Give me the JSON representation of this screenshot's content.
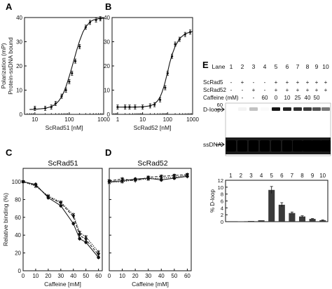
{
  "panels": {
    "A": {
      "letter": "A"
    },
    "B": {
      "letter": "B"
    },
    "C": {
      "letter": "C",
      "title": "ScRad51"
    },
    "D": {
      "letter": "D",
      "title": "ScRad52"
    },
    "E": {
      "letter": "E"
    }
  },
  "colors": {
    "ink": "#111111",
    "bar": "#3a3a3a",
    "gel_bg": "#ffffff",
    "gel_band": "#0a0a0a"
  },
  "gel": {
    "lane_header": "Lane",
    "lanes": [
      "1",
      "2",
      "3",
      "4",
      "5",
      "6",
      "7",
      "8",
      "9",
      "10"
    ],
    "row_scrad5_label": "ScRad5",
    "row_scrad5": [
      "-",
      "+",
      "-",
      "-",
      "+",
      "+",
      "+",
      "+",
      "+",
      "+"
    ],
    "row_scrad52_label": "ScRad52",
    "row_scrad52": [
      "-",
      "-",
      "+",
      "-",
      "+",
      "+",
      "+",
      "+",
      "+",
      "+"
    ],
    "row_caffeine_label": "Caffeine (mM)",
    "row_caffeine": [
      "-",
      "-",
      "-",
      "60",
      "0",
      "10",
      "25",
      "40",
      "50",
      ""
    ],
    "marker_60": "60",
    "dloop_label": "D-loop",
    "ssdna_label": "ssDNA",
    "dloop_intensity": [
      0,
      0.05,
      0.25,
      0.02,
      0.95,
      0.9,
      0.85,
      0.8,
      0.7,
      0.55
    ],
    "ssdna_intensity": [
      1,
      1,
      1,
      1,
      1,
      1,
      1,
      1,
      1,
      1
    ]
  },
  "chart_data": [
    {
      "panel": "A",
      "type": "line",
      "xlabel": "ScRad51 [nM]",
      "ylabel": "Polarization (mP)\nProtein-ssDNA bound",
      "xscale": "log",
      "xlim": [
        5,
        1000
      ],
      "ylim": [
        0,
        40
      ],
      "xticks": [
        10,
        100,
        1000
      ],
      "xtick_labels": [
        "10",
        "100",
        "1000"
      ],
      "yticks": [
        0,
        10,
        20,
        30,
        40
      ],
      "ytick_labels": [
        "0",
        "10",
        "20",
        "30",
        "40"
      ],
      "x": [
        10,
        20,
        30,
        40,
        60,
        80,
        100,
        120,
        150,
        200,
        300,
        400,
        600,
        800
      ],
      "y": [
        2.5,
        2.5,
        3,
        4.5,
        7.5,
        10,
        13.5,
        17,
        22,
        28,
        36,
        38,
        39,
        39.5
      ],
      "fit_x": [
        7,
        10,
        15,
        20,
        30,
        40,
        50,
        60,
        70,
        80,
        90,
        100,
        120,
        140,
        160,
        200,
        250,
        300,
        400,
        500,
        700,
        1000
      ],
      "fit_y": [
        2,
        2.1,
        2.3,
        2.5,
        3.2,
        4.2,
        5.6,
        7.3,
        9.3,
        11.4,
        13.6,
        15.7,
        19.6,
        23,
        25.9,
        30.4,
        34,
        36.1,
        38.2,
        39,
        39.5,
        39.7
      ]
    },
    {
      "panel": "B",
      "type": "line",
      "xlabel": "ScRad52 [nM]",
      "xscale": "log",
      "xlim": [
        0.6,
        1000
      ],
      "ylim": [
        0,
        40
      ],
      "xticks": [
        1,
        10,
        100,
        1000
      ],
      "xtick_labels": [
        "1",
        "10",
        "100",
        "1000"
      ],
      "yticks": [
        0,
        10,
        20,
        30,
        40
      ],
      "ytick_labels": [
        "0",
        "10",
        "20",
        "30",
        "40"
      ],
      "x": [
        1,
        2,
        3,
        5,
        10,
        20,
        30,
        50,
        80,
        100,
        150,
        200,
        300,
        500,
        800
      ],
      "y": [
        3,
        3,
        3,
        3,
        3,
        3.5,
        4,
        6,
        11,
        17,
        24,
        29,
        31,
        33,
        34
      ],
      "fit_x": [
        1,
        2,
        5,
        10,
        20,
        30,
        40,
        50,
        60,
        70,
        80,
        100,
        120,
        150,
        200,
        300,
        500,
        1000
      ],
      "fit_y": [
        3,
        3,
        3,
        3.1,
        3.5,
        4.3,
        5.6,
        7.2,
        9.2,
        11.3,
        13.4,
        17.5,
        21,
        24.6,
        28.1,
        31.3,
        33.3,
        34.3
      ]
    },
    {
      "panel": "C",
      "type": "line",
      "title": "ScRad51",
      "xlabel": "Caffeine [mM]",
      "ylabel": "Relative binding (%)",
      "xlim": [
        0,
        63
      ],
      "ylim": [
        0,
        115
      ],
      "xticks": [
        0,
        10,
        20,
        30,
        40,
        50,
        60
      ],
      "xtick_labels": [
        "0",
        "10",
        "20",
        "30",
        "40",
        "50",
        "60"
      ],
      "yticks": [
        0,
        20,
        40,
        60,
        80,
        100
      ],
      "ytick_labels": [
        "0",
        "20",
        "40",
        "60",
        "80",
        "100"
      ],
      "series": [
        {
          "marker": "circle",
          "x": [
            0,
            10,
            20,
            30,
            40,
            45,
            50,
            60
          ],
          "y": [
            100,
            97,
            82,
            73,
            53,
            36,
            32,
            15
          ]
        },
        {
          "marker": "triangle",
          "x": [
            0,
            10,
            20,
            30,
            40,
            45,
            50,
            60
          ],
          "y": [
            100,
            96,
            83,
            76,
            61,
            40,
            35,
            18
          ]
        },
        {
          "marker": "x",
          "x": [
            0,
            10,
            20,
            30,
            40,
            45,
            50,
            60
          ],
          "y": [
            100,
            95,
            84,
            77,
            63,
            43,
            38,
            21
          ]
        }
      ]
    },
    {
      "panel": "D",
      "type": "line",
      "title": "ScRad52",
      "xlabel": "Caffeine [mM]",
      "xlim": [
        0,
        63
      ],
      "ylim": [
        0,
        115
      ],
      "xticks": [
        0,
        10,
        20,
        30,
        40,
        50,
        60
      ],
      "xtick_labels": [
        "0",
        "10",
        "20",
        "30",
        "40",
        "50",
        "60"
      ],
      "yticks": [
        0,
        20,
        40,
        60,
        80,
        100
      ],
      "ytick_labels": [
        "",
        "",
        "",
        "",
        "",
        ""
      ],
      "series": [
        {
          "marker": "circle",
          "x": [
            0,
            10,
            20,
            30,
            40,
            50,
            60
          ],
          "y": [
            100,
            101,
            103,
            104,
            102,
            104,
            106
          ]
        },
        {
          "marker": "triangle",
          "x": [
            0,
            10,
            20,
            30,
            40,
            50,
            60
          ],
          "y": [
            101,
            103,
            101,
            105,
            106,
            107,
            108
          ]
        },
        {
          "marker": "x",
          "x": [
            0,
            10,
            20,
            30,
            40,
            50,
            60
          ],
          "y": [
            99,
            100,
            102,
            103,
            104,
            105,
            107
          ]
        }
      ]
    },
    {
      "panel": "E",
      "type": "bar",
      "ylabel": "% D-loop",
      "categories": [
        "1",
        "2",
        "3",
        "4",
        "5",
        "6",
        "7",
        "8",
        "9",
        "10"
      ],
      "values": [
        0,
        0.1,
        0.2,
        0.4,
        9.2,
        4.9,
        2.5,
        1.5,
        0.8,
        0.4
      ],
      "errors": [
        0,
        0,
        0,
        0,
        1.0,
        0.6,
        0.3,
        0.2,
        0.1,
        0.1
      ],
      "ylim": [
        0,
        12
      ],
      "yticks": [
        0,
        2,
        4,
        6,
        8,
        10,
        12
      ],
      "ytick_labels": [
        "0",
        "2",
        "4",
        "6",
        "8",
        "10",
        "12"
      ]
    }
  ]
}
